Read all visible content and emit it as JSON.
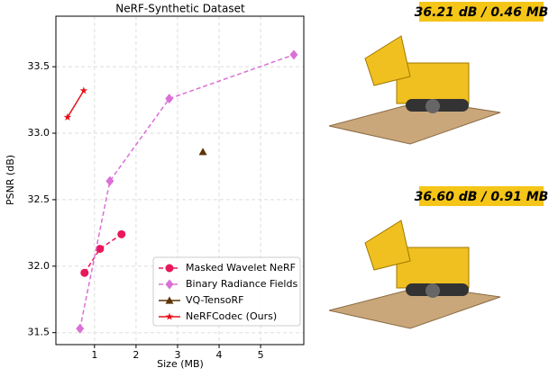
{
  "chart_data": {
    "type": "line",
    "title": "NeRF-Synthetic Dataset",
    "x_label": "Size (MB)",
    "y_label": "PSNR (dB)",
    "xlim": [
      0.07,
      6.04
    ],
    "ylim": [
      31.41,
      33.88
    ],
    "xticks": [
      1,
      2,
      3,
      4,
      5
    ],
    "yticks": [
      31.5,
      {
        "value": 32,
        "label": "32.0"
      },
      32.5,
      {
        "value": 33,
        "label": "33.0"
      },
      33.5
    ],
    "grid": true,
    "legend": "lower right",
    "series": [
      {
        "name": "Masked Wavelet NeRF",
        "color": "#e8185a",
        "marker": "circle",
        "linestyle": "dashed",
        "x": [
          0.76,
          1.13,
          1.65
        ],
        "values": [
          31.95,
          32.13,
          32.24
        ]
      },
      {
        "name": "Binary Radiance Fields",
        "color": "#da70d6",
        "marker": "diamond",
        "linestyle": "dashed",
        "x": [
          0.65,
          1.37,
          2.8,
          5.8
        ],
        "values": [
          31.53,
          32.64,
          33.26,
          33.59
        ]
      },
      {
        "name": "VQ-TensoRF",
        "color": "#5c3306",
        "marker": "triangle",
        "linestyle": "solid",
        "x": [
          3.61
        ],
        "values": [
          32.86
        ]
      },
      {
        "name": "NeRFCodec (Ours)",
        "color": "#e8101a",
        "marker": "star",
        "linestyle": "solid",
        "x": [
          0.35,
          0.74
        ],
        "values": [
          33.12,
          33.32
        ]
      }
    ]
  },
  "renders": [
    {
      "label": "36.21 dB / 0.46 MB"
    },
    {
      "label": "36.60 dB / 0.91 MB"
    }
  ]
}
